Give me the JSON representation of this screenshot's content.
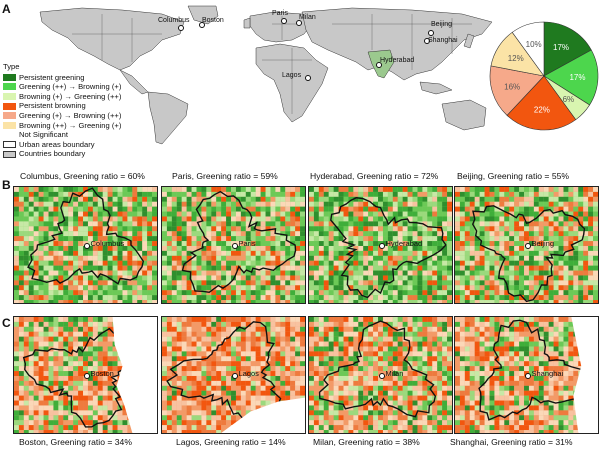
{
  "panels": {
    "a": "A",
    "b": "B",
    "c": "C"
  },
  "world_cities": [
    {
      "name": "Columbus"
    },
    {
      "name": "Boston"
    },
    {
      "name": "Paris"
    },
    {
      "name": "Milan"
    },
    {
      "name": "Lagos"
    },
    {
      "name": "Hyderabad"
    },
    {
      "name": "Beijing"
    },
    {
      "name": "Shanghai"
    }
  ],
  "legend": {
    "title": "Type",
    "items": [
      {
        "label": "Persistent greening",
        "color": "#1f7a1f"
      },
      {
        "label": "Greening (++) → Browning (+)",
        "color": "#4dd64d"
      },
      {
        "label": "Browning (+) → Greening (++)",
        "color": "#d9f5b0"
      },
      {
        "label": "Persistent browning",
        "color": "#f2560f"
      },
      {
        "label": "Greening (+) → Browning (++)",
        "color": "#f6a98a"
      },
      {
        "label": "Browning (++) → Greening (+)",
        "color": "#fbe3a6"
      },
      {
        "label": "Not Significant",
        "color": ""
      },
      {
        "label": "Urban areas boundary",
        "color": "#ffffff"
      },
      {
        "label": "Countries boundary",
        "color": "#c8c8c8"
      }
    ]
  },
  "pie": {
    "slices": [
      {
        "label": "17%",
        "value": 17,
        "color": "#1f7a1f"
      },
      {
        "label": "17%",
        "value": 17,
        "color": "#4dd64d"
      },
      {
        "label": "6%",
        "value": 6,
        "color": "#d9f5b0"
      },
      {
        "label": "22%",
        "value": 22,
        "color": "#f2560f"
      },
      {
        "label": "16%",
        "value": 16,
        "color": "#f6a98a"
      },
      {
        "label": "12%",
        "value": 12,
        "color": "#fbe3a6"
      },
      {
        "label": "10%",
        "value": 10,
        "color": "#ffffff"
      }
    ]
  },
  "row_b": [
    {
      "caption": "Columbus, Greening ratio = 60%",
      "city": "Columbus",
      "greening": 0.6
    },
    {
      "caption": "Paris, Greening ratio = 59%",
      "city": "Paris",
      "greening": 0.59
    },
    {
      "caption": "Hyderabad, Greening ratio = 72%",
      "city": "Hyderabad",
      "greening": 0.72
    },
    {
      "caption": "Beijing, Greening ratio = 55%",
      "city": "Beijing",
      "greening": 0.55
    }
  ],
  "row_c": [
    {
      "caption": "Boston, Greening ratio = 34%",
      "city": "Boston",
      "greening": 0.34
    },
    {
      "caption": "Lagos, Greening ratio = 14%",
      "city": "Lagos",
      "greening": 0.14
    },
    {
      "caption": "Milan, Greening ratio = 38%",
      "city": "Milan",
      "greening": 0.38
    },
    {
      "caption": "Shanghai, Greening ratio = 31%",
      "city": "Shanghai",
      "greening": 0.31
    }
  ]
}
